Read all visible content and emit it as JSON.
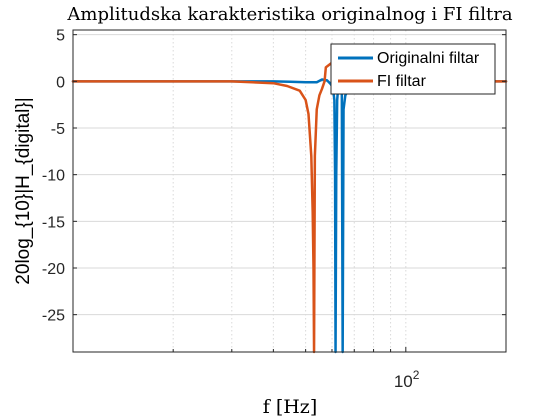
{
  "chart_data": {
    "type": "line",
    "title": "Amplitudska karakteristika originalnog i FI filtra",
    "xlabel": "f [Hz]",
    "ylabel": "20log_{10}|H_{digital}|",
    "x_scale": "log",
    "xlim": [
      10,
      200
    ],
    "ylim": [
      -29,
      5.5
    ],
    "grid": true,
    "legend_position": "top-right",
    "x_tick_labels": [
      {
        "value": 100,
        "base": "10",
        "exponent": "2"
      }
    ],
    "y_ticks": [
      5,
      0,
      -5,
      -10,
      -15,
      -20,
      -25
    ],
    "y_tick_labels": [
      "5",
      "0",
      "-5",
      "-10",
      "-15",
      "-20",
      "-25"
    ],
    "series": [
      {
        "name": "Originalni filtar",
        "color": "#0072BD",
        "points": [
          [
            10,
            0
          ],
          [
            20,
            0
          ],
          [
            30,
            0
          ],
          [
            36,
            0
          ],
          [
            40,
            0
          ],
          [
            45,
            -0.05
          ],
          [
            50,
            -0.1
          ],
          [
            54,
            -0.1
          ],
          [
            56,
            0.2
          ],
          [
            58,
            0.1
          ],
          [
            59.5,
            -0.3
          ],
          [
            60.4,
            -0.7
          ],
          [
            61,
            -2
          ],
          [
            61.3,
            -10
          ],
          [
            61.5,
            -29
          ],
          [
            61.8,
            -10
          ],
          [
            62.2,
            -2
          ],
          [
            63,
            0.5
          ],
          [
            64.2,
            0.5
          ],
          [
            64.6,
            -29
          ],
          [
            65,
            -3
          ],
          [
            65.8,
            -1.5
          ],
          [
            67,
            -1
          ],
          [
            69,
            -0.6
          ],
          [
            72,
            -0.4
          ],
          [
            80,
            -0.2
          ],
          [
            90,
            0
          ],
          [
            100,
            0
          ],
          [
            150,
            0
          ],
          [
            200,
            0
          ]
        ]
      },
      {
        "name": "FI filtar",
        "color": "#D95319",
        "points": [
          [
            10,
            0
          ],
          [
            20,
            0
          ],
          [
            30,
            0
          ],
          [
            40,
            -0.2
          ],
          [
            44,
            -0.5
          ],
          [
            48,
            -1
          ],
          [
            50,
            -2
          ],
          [
            51,
            -3.5
          ],
          [
            52,
            -8
          ],
          [
            52.5,
            -14
          ],
          [
            52.8,
            -20
          ],
          [
            53,
            -29
          ],
          [
            53.3,
            -8
          ],
          [
            54,
            -3
          ],
          [
            55,
            -1.5
          ],
          [
            56,
            -0.8
          ],
          [
            57,
            0
          ],
          [
            57.5,
            1.5
          ],
          [
            60,
            2
          ],
          [
            63,
            2.3
          ],
          [
            64.5,
            2.5
          ],
          [
            66,
            2
          ],
          [
            68,
            1.2
          ],
          [
            70,
            0.5
          ],
          [
            72,
            0.2
          ],
          [
            75,
            0
          ],
          [
            80,
            -0.1
          ],
          [
            90,
            0
          ],
          [
            100,
            0
          ],
          [
            150,
            0
          ],
          [
            200,
            0
          ]
        ]
      }
    ]
  }
}
